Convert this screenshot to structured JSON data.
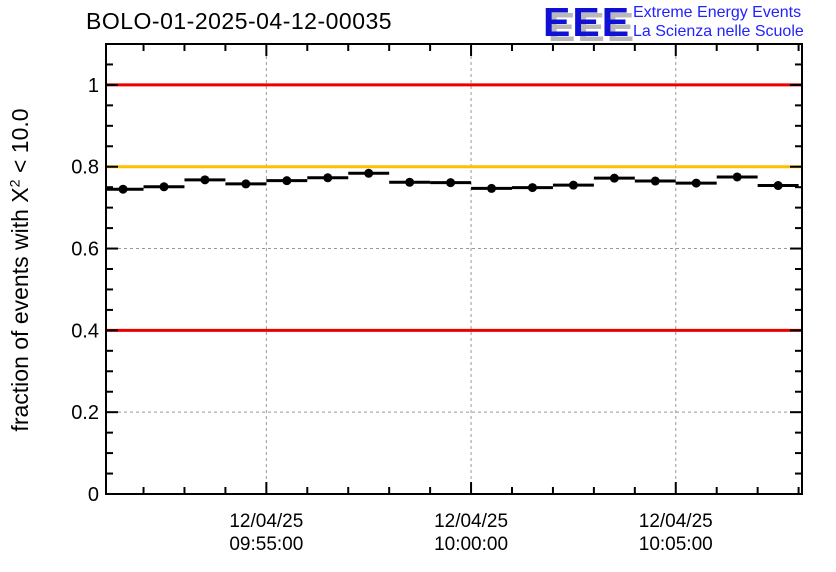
{
  "header": {
    "title": "BOLO-01-2025-04-12-00035"
  },
  "logo": {
    "eee": "EEE",
    "line1": "Extreme Energy Events",
    "line2": "La Scienza nelle Scuole",
    "eee_color": "#1111d6",
    "text_color": "#2222ff",
    "shadow_color": "#b9b9b9"
  },
  "chart_data": {
    "type": "line",
    "title": "BOLO-01-2025-04-12-00035",
    "ylabel": {
      "prefix": "fraction of events with X",
      "sup": "2",
      "suffix": " < 10.0"
    },
    "xlabel": "",
    "ylim": [
      0,
      1.1
    ],
    "x_range": [
      "09:51:05",
      "10:08:05"
    ],
    "x_date": "12/04/25",
    "x": [
      "09:51:30",
      "09:52:30",
      "09:53:30",
      "09:54:30",
      "09:55:30",
      "09:56:30",
      "09:57:30",
      "09:58:30",
      "09:59:30",
      "10:00:30",
      "10:01:30",
      "10:02:30",
      "10:03:30",
      "10:04:30",
      "10:05:30",
      "10:06:30",
      "10:07:30"
    ],
    "values": [
      0.745,
      0.751,
      0.768,
      0.758,
      0.766,
      0.773,
      0.784,
      0.762,
      0.761,
      0.747,
      0.749,
      0.755,
      0.772,
      0.765,
      0.76,
      0.775,
      0.754
    ],
    "bin_halfwidth_s": 30,
    "line_color": "#000000",
    "marker": {
      "shape": "circle",
      "color": "#000000",
      "radius": 4.5
    },
    "yticks": [
      {
        "v": 0,
        "label": "0"
      },
      {
        "v": 0.2,
        "label": "0.2"
      },
      {
        "v": 0.4,
        "label": "0.4"
      },
      {
        "v": 0.6,
        "label": "0.6"
      },
      {
        "v": 0.8,
        "label": "0.8"
      },
      {
        "v": 1,
        "label": "1"
      }
    ],
    "ytick_minor_step": 0.05,
    "xticks": [
      {
        "t": "09:55:00",
        "lines": [
          "12/04/25",
          "09:55:00"
        ]
      },
      {
        "t": "10:00:00",
        "lines": [
          "12/04/25",
          "10:00:00"
        ]
      },
      {
        "t": "10:05:00",
        "lines": [
          "12/04/25",
          "10:05:00"
        ]
      }
    ],
    "x_minor_step_s": 60,
    "reference_lines": [
      {
        "y": 1.0,
        "color": "#ee0000"
      },
      {
        "y": 0.8,
        "color": "#ffbf00"
      },
      {
        "y": 0.4,
        "color": "#ee0000"
      }
    ],
    "grid": {
      "on": true,
      "color": "#999999",
      "dash": "3 3"
    },
    "legend": {
      "visible": false
    }
  }
}
